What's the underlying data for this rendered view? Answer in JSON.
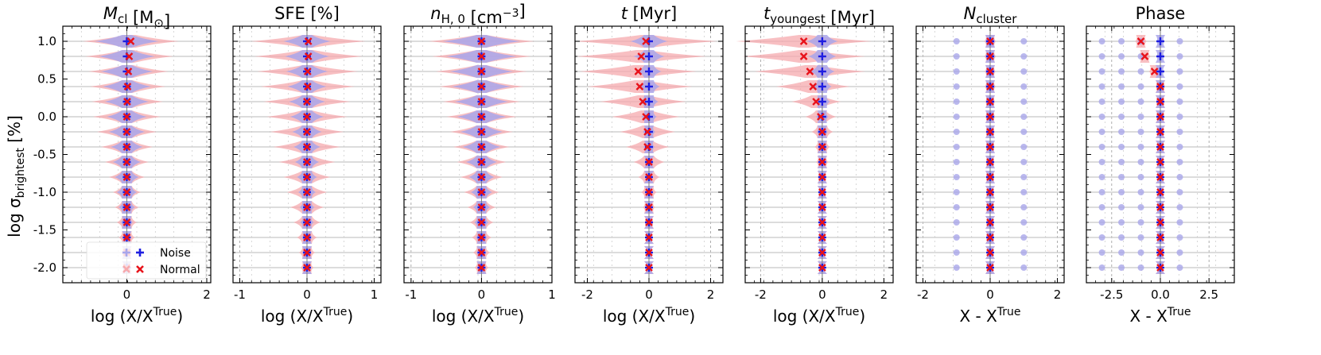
{
  "chart_data": {
    "type": "violin",
    "shared": {
      "y_values": [
        1.0,
        0.8,
        0.6,
        0.4,
        0.2,
        0.0,
        -0.2,
        -0.4,
        -0.6,
        -0.8,
        -1.0,
        -1.2,
        -1.4,
        -1.6,
        -1.8,
        -2.0
      ],
      "ylim": [
        -2.2,
        1.2
      ],
      "ylabel_main": "log σ",
      "ylabel_sub": "brightest",
      "ylabel_unit": " [%]",
      "yticks": [
        1.0,
        0.5,
        0.0,
        -0.5,
        -1.0,
        -1.5,
        -2.0
      ],
      "ytick_labels": [
        "1.0",
        "0.5",
        "0.0",
        "-0.5",
        "-1.0",
        "-1.5",
        "-2.0"
      ]
    },
    "legend": {
      "location": "lower-left",
      "entries": [
        {
          "label": "Noise",
          "marker": "+",
          "color": "#1f1fe0",
          "violin_color": "#a9a6ea"
        },
        {
          "label": "Normal",
          "marker": "x",
          "color": "#e8121a",
          "violin_color": "#f6a9ad"
        }
      ]
    },
    "panels": [
      {
        "title_main": "M",
        "title_sub": "cl",
        "title_rest": " [M",
        "title_odot": "⊙",
        "title_close": "]",
        "x_label": "log (X/X",
        "x_label_sup": "True",
        "x_label_close": ")",
        "xlim": [
          -1.6,
          2.1
        ],
        "xticks": [
          0,
          2
        ],
        "xtick_labels": [
          "0",
          "2"
        ],
        "noise_median": [
          0,
          0,
          0,
          0,
          0,
          0,
          0,
          0,
          0,
          0,
          0,
          0,
          0,
          0,
          0,
          0
        ],
        "normal_median": [
          0.1,
          0.06,
          0.04,
          0.02,
          0.01,
          0.0,
          0,
          0,
          0,
          0,
          0,
          0,
          0,
          0,
          0,
          0
        ],
        "noise_spread": [
          0.8,
          0.7,
          0.65,
          0.6,
          0.55,
          0.5,
          0.45,
          0.4,
          0.35,
          0.3,
          0.25,
          0.2,
          0.15,
          0.1,
          0.08,
          0.06
        ],
        "normal_spread": [
          1.2,
          1.1,
          1.0,
          0.95,
          0.9,
          0.85,
          0.75,
          0.65,
          0.55,
          0.45,
          0.35,
          0.3,
          0.25,
          0.2,
          0.15,
          0.1
        ],
        "show_legend": true
      },
      {
        "title_main": "SFE [%]",
        "x_label": "log (X/X",
        "x_label_sup": "True",
        "x_label_close": ")",
        "xlim": [
          -1.1,
          1.1
        ],
        "xticks": [
          -1,
          0,
          1
        ],
        "xtick_labels": [
          "-1",
          "0",
          "1"
        ],
        "noise_median": [
          0,
          0,
          0,
          0,
          0,
          0,
          0,
          0,
          0,
          0,
          0,
          0,
          0,
          0,
          0,
          0
        ],
        "normal_median": [
          0.02,
          0.02,
          0.01,
          0.01,
          0,
          0,
          0,
          0,
          0,
          0,
          0,
          0,
          0,
          0,
          0,
          0
        ],
        "noise_spread": [
          0.35,
          0.33,
          0.31,
          0.29,
          0.27,
          0.25,
          0.22,
          0.2,
          0.18,
          0.15,
          0.13,
          0.11,
          0.1,
          0.08,
          0.07,
          0.06
        ],
        "normal_spread": [
          0.85,
          0.8,
          0.75,
          0.7,
          0.65,
          0.6,
          0.55,
          0.5,
          0.42,
          0.35,
          0.3,
          0.25,
          0.2,
          0.15,
          0.12,
          0.1
        ]
      },
      {
        "title_main": "n",
        "title_sub": "H, 0",
        "title_rest": " [cm",
        "title_sup": "−3",
        "title_close": "]",
        "x_label": "log (X/X",
        "x_label_sup": "True",
        "x_label_close": ")",
        "xlim": [
          -1.1,
          1.0
        ],
        "xticks": [
          -1,
          0,
          1
        ],
        "xtick_labels": [
          "-1",
          "0",
          "1"
        ],
        "noise_median": [
          0,
          0,
          0,
          0,
          0,
          0,
          0,
          0,
          0,
          0,
          0,
          0,
          0,
          0,
          0,
          0
        ],
        "normal_median": [
          0,
          0,
          0,
          0,
          0,
          0,
          0,
          0,
          0,
          0,
          0,
          0,
          0,
          0,
          0,
          0
        ],
        "noise_spread": [
          0.55,
          0.5,
          0.45,
          0.42,
          0.38,
          0.35,
          0.3,
          0.27,
          0.22,
          0.18,
          0.15,
          0.12,
          0.1,
          0.08,
          0.07,
          0.06
        ],
        "normal_spread": [
          0.75,
          0.7,
          0.65,
          0.6,
          0.55,
          0.5,
          0.45,
          0.4,
          0.35,
          0.3,
          0.25,
          0.2,
          0.17,
          0.14,
          0.12,
          0.1
        ]
      },
      {
        "title_main": "t",
        "title_rest": " [Myr]",
        "x_label": "log (X/X",
        "x_label_sup": "True",
        "x_label_close": ")",
        "xlim": [
          -2.4,
          2.4
        ],
        "xticks": [
          -2,
          0,
          2
        ],
        "xtick_labels": [
          "-2",
          "0",
          "2"
        ],
        "noise_median": [
          0,
          0,
          0,
          0,
          0,
          0,
          0,
          0,
          0,
          0,
          0,
          0,
          0,
          0,
          0,
          0
        ],
        "normal_median": [
          -0.1,
          -0.25,
          -0.35,
          -0.3,
          -0.2,
          -0.1,
          -0.05,
          -0.05,
          0,
          0,
          0,
          0,
          0,
          0,
          0,
          0
        ],
        "noise_spread": [
          0.6,
          0.5,
          0.4,
          0.35,
          0.3,
          0.25,
          0.2,
          0.18,
          0.15,
          0.12,
          0.1,
          0.08,
          0.07,
          0.06,
          0.05,
          0.05
        ],
        "normal_spread": [
          2.3,
          2.1,
          1.9,
          1.7,
          1.4,
          1.1,
          0.9,
          0.7,
          0.5,
          0.35,
          0.25,
          0.2,
          0.15,
          0.1,
          0.08,
          0.07
        ]
      },
      {
        "title_main": "t",
        "title_sub": "youngest",
        "title_rest": " [Myr]",
        "x_label": "log (X/X",
        "x_label_sup": "True",
        "x_label_close": ")",
        "xlim": [
          -2.5,
          2.3
        ],
        "xticks": [
          -2,
          0,
          2
        ],
        "xtick_labels": [
          "-2",
          "0",
          "2"
        ],
        "noise_median": [
          0,
          0,
          0,
          0,
          0,
          0,
          0,
          0,
          0,
          0,
          0,
          0,
          0,
          0,
          0,
          0
        ],
        "normal_median": [
          -0.6,
          -0.6,
          -0.4,
          -0.3,
          -0.2,
          -0.05,
          0,
          0,
          0,
          0,
          0,
          0,
          0,
          0,
          0,
          0
        ],
        "noise_spread": [
          0.5,
          0.45,
          0.4,
          0.3,
          0.25,
          0.2,
          0.18,
          0.15,
          0.12,
          0.1,
          0.08,
          0.07,
          0.06,
          0.05,
          0.05,
          0.05
        ],
        "normal_spread": [
          2.2,
          2.0,
          1.8,
          1.2,
          0.8,
          0.5,
          0.35,
          0.25,
          0.2,
          0.15,
          0.12,
          0.1,
          0.08,
          0.07,
          0.06,
          0.05
        ]
      },
      {
        "title_main": "N",
        "title_sub": "cluster",
        "x_label": "X - X",
        "x_label_sup": "True",
        "x_label_close": "",
        "xlim": [
          -2.2,
          2.2
        ],
        "xticks": [
          -2,
          0,
          2
        ],
        "xtick_labels": [
          "-2",
          "0",
          "2"
        ],
        "noise_median": [
          0,
          0,
          0,
          0,
          0,
          0,
          0,
          0,
          0,
          0,
          0,
          0,
          0,
          0,
          0,
          0
        ],
        "normal_median": [
          0,
          0,
          0,
          0,
          0,
          0,
          0,
          0,
          0,
          0,
          0,
          0,
          0,
          0,
          0,
          0
        ],
        "noise_spread": [
          0.15,
          0.15,
          0.14,
          0.14,
          0.13,
          0.13,
          0.12,
          0.12,
          0.11,
          0.11,
          0.1,
          0.1,
          0.09,
          0.09,
          0.08,
          0.08
        ],
        "normal_spread": [
          0.18,
          0.18,
          0.17,
          0.17,
          0.16,
          0.16,
          0.15,
          0.15,
          0.14,
          0.14,
          0.13,
          0.13,
          0.12,
          0.12,
          0.11,
          0.11
        ],
        "secondary_blobs": [
          -1,
          1
        ]
      },
      {
        "title_main": "Phase",
        "x_label": "X - X",
        "x_label_sup": "True",
        "x_label_close": "",
        "xlim": [
          -3.8,
          3.8
        ],
        "xticks": [
          -2.5,
          0.0,
          2.5
        ],
        "xtick_labels": [
          "-2.5",
          "0.0",
          "2.5"
        ],
        "noise_median": [
          0,
          0,
          0,
          0,
          0,
          0,
          0,
          0,
          0,
          0,
          0,
          0,
          0,
          0,
          0,
          0
        ],
        "normal_median": [
          -1.0,
          -0.8,
          -0.3,
          0,
          0,
          0,
          0,
          0,
          0,
          0,
          0,
          0,
          0,
          0,
          0,
          0
        ],
        "noise_spread": [
          0.2,
          0.2,
          0.18,
          0.16,
          0.15,
          0.14,
          0.13,
          0.12,
          0.11,
          0.1,
          0.1,
          0.09,
          0.09,
          0.08,
          0.08,
          0.08
        ],
        "normal_spread": [
          0.3,
          0.3,
          0.28,
          0.26,
          0.24,
          0.22,
          0.2,
          0.18,
          0.16,
          0.15,
          0.14,
          0.13,
          0.12,
          0.11,
          0.1,
          0.1
        ],
        "secondary_blobs": [
          -3,
          -2,
          -1,
          1
        ]
      }
    ]
  },
  "colors": {
    "noise_violin": "#a9a6ea",
    "normal_violin": "#f6a9ad",
    "noise_marker": "#1f1fe0",
    "normal_marker": "#e8121a",
    "grid": "#9a9a9a",
    "range_line": "#c8c8c8"
  }
}
